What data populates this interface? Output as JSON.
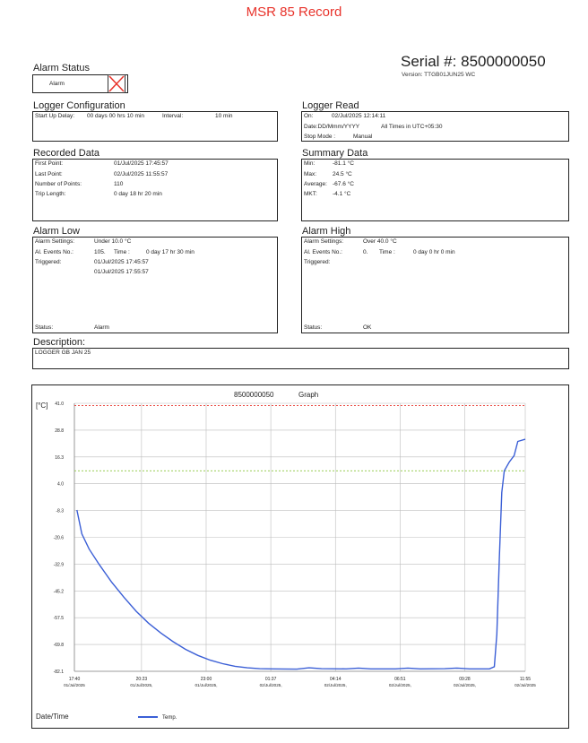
{
  "title": "MSR 85 Record",
  "serial": {
    "label": "Serial #:",
    "value": "8500000050",
    "version": "Version: TTGB01JUN25 WC"
  },
  "alarm_status": {
    "heading": "Alarm Status",
    "label": "Alarm"
  },
  "logger_config": {
    "heading": "Logger Configuration",
    "startup_label": "Start Up Delay:",
    "startup_value": "00 days 00 hrs 10 min",
    "interval_label": "Interval:",
    "interval_value": "10 min"
  },
  "logger_read": {
    "heading": "Logger Read",
    "on_label": "On:",
    "on_value": "02/Jul/2025 12:14:11",
    "date_format": "Date:DD/Mmm/YYYY",
    "times": "All Times in UTC+05:30",
    "stop_label": "Stop Mode :",
    "stop_value": "Manual"
  },
  "recorded_data": {
    "heading": "Recorded Data",
    "rows": [
      {
        "label": "First Point:",
        "value": "01/Jul/2025 17:45:57"
      },
      {
        "label": "Last Point:",
        "value": "02/Jul/2025 11:55:57"
      },
      {
        "label": "Number of Points:",
        "value": "110"
      },
      {
        "label": "Trip Length:",
        "value": "0 day 18 hr 20 min"
      }
    ]
  },
  "summary_data": {
    "heading": "Summary Data",
    "rows": [
      {
        "label": "Min:",
        "value": "-81.1 °C"
      },
      {
        "label": "Max:",
        "value": "24.5 °C"
      },
      {
        "label": "Average:",
        "value": "-67.6 °C"
      },
      {
        "label": "MKT:",
        "value": "-4.1 °C"
      }
    ]
  },
  "alarm_low": {
    "heading": "Alarm Low",
    "settings_label": "Alarm Settings:",
    "settings_value": "Under 10.0 °C",
    "events_label": "Al. Events No.:",
    "events_value": "105.",
    "time_label": "Time :",
    "time_value": "0 day 17 hr 30 min",
    "triggered_label": "Triggered:",
    "triggered_values": [
      "01/Jul/2025 17:45:57",
      "01/Jul/2025 17:55:57"
    ],
    "status_label": "Status:",
    "status_value": "Alarm"
  },
  "alarm_high": {
    "heading": "Alarm High",
    "settings_label": "Alarm Settings:",
    "settings_value": "Over 40.0 °C",
    "events_label": "Al. Events No.:",
    "events_value": "0.",
    "time_label": "Time :",
    "time_value": "0 day 0 hr 0 min",
    "triggered_label": "Triggered:",
    "status_label": "Status:",
    "status_value": "OK"
  },
  "description": {
    "heading": "Description:",
    "value": "LOGGER GB JAN 25"
  },
  "graph": {
    "title_serial": "8500000050",
    "title_word": "Graph",
    "unit": "[°C]",
    "xlabel": "Date/Time",
    "legend": "Temp."
  },
  "chart_data": {
    "type": "line",
    "title": "8500000050 Graph",
    "xlabel": "Date/Time",
    "ylabel": "[°C]",
    "y_ticks": [
      "41.0",
      "28.8",
      "16.3",
      "4.0",
      "-8.3",
      "-20.6",
      "-32.9",
      "-45.2",
      "-57.5",
      "-69.8",
      "-82.1"
    ],
    "ylim": [
      -82.1,
      41.0
    ],
    "x_ticks": [
      {
        "time": "17:40",
        "date": "01/Jul/2025"
      },
      {
        "time": "20:23",
        "date": "01/Jul/2025,"
      },
      {
        "time": "23:00",
        "date": "01/Jul/2025,"
      },
      {
        "time": "01:37",
        "date": "02/Jul/2025,"
      },
      {
        "time": "04:14",
        "date": "02/Jul/2025,"
      },
      {
        "time": "06:51",
        "date": "02/Jul/2025,"
      },
      {
        "time": "09:28",
        "date": "02/Jul/2025,"
      },
      {
        "time": "11:55",
        "date": "02/Jul/2025"
      }
    ],
    "x_tick_hours": [
      0,
      2.717,
      5.333,
      7.95,
      10.567,
      13.183,
      15.8,
      18.25
    ],
    "xlim_hours": [
      0,
      18.25
    ],
    "x_origin": "01/Jul/2025 17:40",
    "thresholds": [
      {
        "name": "Alarm High",
        "value": 40.0,
        "color": "#e8332b"
      },
      {
        "name": "Alarm Low",
        "value": 10.0,
        "color": "#8cc63f"
      }
    ],
    "grid": true,
    "legend_position": "bottom",
    "series": [
      {
        "name": "Temp.",
        "color": "#3b5fd6",
        "points": [
          [
            0.1,
            -8.0
          ],
          [
            0.3,
            -19.0
          ],
          [
            0.6,
            -26.0
          ],
          [
            1.0,
            -33.0
          ],
          [
            1.5,
            -41.0
          ],
          [
            2.0,
            -48.0
          ],
          [
            2.5,
            -54.5
          ],
          [
            3.0,
            -60.0
          ],
          [
            3.5,
            -64.5
          ],
          [
            4.0,
            -68.5
          ],
          [
            4.5,
            -72.0
          ],
          [
            5.0,
            -74.8
          ],
          [
            5.5,
            -77.0
          ],
          [
            6.0,
            -78.6
          ],
          [
            6.5,
            -79.8
          ],
          [
            7.0,
            -80.5
          ],
          [
            7.5,
            -80.9
          ],
          [
            8.0,
            -81.0
          ],
          [
            9.0,
            -81.1
          ],
          [
            9.5,
            -80.5
          ],
          [
            10.0,
            -80.9
          ],
          [
            11.0,
            -81.0
          ],
          [
            11.5,
            -80.6
          ],
          [
            12.0,
            -81.0
          ],
          [
            13.0,
            -81.0
          ],
          [
            13.5,
            -80.6
          ],
          [
            14.0,
            -81.0
          ],
          [
            15.0,
            -80.9
          ],
          [
            15.5,
            -80.6
          ],
          [
            16.0,
            -81.0
          ],
          [
            16.8,
            -81.0
          ],
          [
            17.0,
            -80.0
          ],
          [
            17.1,
            -65.0
          ],
          [
            17.2,
            -30.0
          ],
          [
            17.3,
            0.0
          ],
          [
            17.4,
            10.0
          ],
          [
            17.6,
            14.0
          ],
          [
            17.8,
            17.0
          ],
          [
            17.95,
            23.5
          ],
          [
            18.25,
            24.5
          ]
        ]
      }
    ]
  }
}
